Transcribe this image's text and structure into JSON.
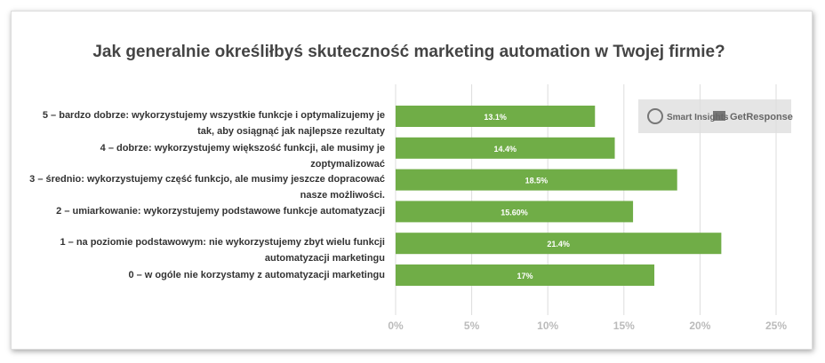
{
  "chart_data": {
    "type": "bar",
    "orientation": "horizontal",
    "title": "Jak generalnie określiłbyś skuteczność marketing automation w Twojej firmie?",
    "categories": [
      "5 – bardzo dobrze: wykorzystujemy wszystkie funkcje i optymalizujemy je tak, aby osiągnąć jak najlepsze rezultaty",
      "4 – dobrze: wykorzystujemy większość funkcji, ale musimy je zoptymalizować",
      "3 – średnio: wykorzystujemy część funkcjo, ale musimy jeszcze dopracować nasze możliwości.",
      "2 – umiarkowanie: wykorzystujemy podstawowe funkcje automatyzacji",
      "1 – na poziomie podstawowym: nie wykorzystujemy zbyt wielu funkcji automatyzacji marketingu",
      "0 – w ogóle nie korzystamy z automatyzacji marketingu"
    ],
    "values": [
      13.1,
      14.4,
      18.5,
      15.6,
      21.4,
      17
    ],
    "value_labels": [
      "13.1%",
      "14.4%",
      "18.5%",
      "15.60%",
      "21.4%",
      "17%"
    ],
    "color": "#70ad47",
    "xlim": [
      0,
      25
    ],
    "xticks": [
      {
        "value": 0,
        "label": "0%"
      },
      {
        "value": 5,
        "label": "5%"
      },
      {
        "value": 10,
        "label": "10%"
      },
      {
        "value": 15,
        "label": "15%"
      },
      {
        "value": 20,
        "label": "20%"
      },
      {
        "value": 25,
        "label": "25%"
      }
    ],
    "grid": true,
    "logos": [
      "Smart Insights",
      "GetResponse"
    ]
  }
}
